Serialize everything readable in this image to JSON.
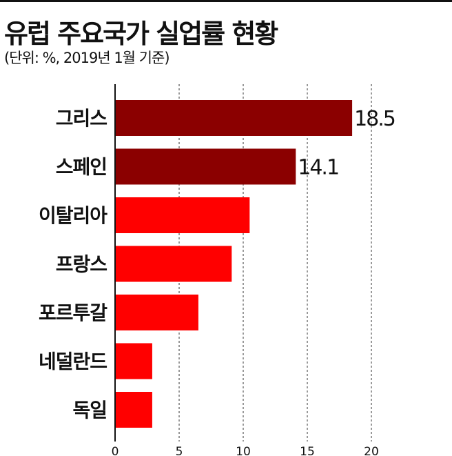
{
  "header": {
    "title": "유럽 주요국가 실업률 현황",
    "subtitle": "(단위: %, 2019년 1월 기준)"
  },
  "colors": {
    "highlight": "#8b0000",
    "bar": "#ff0000",
    "axis": "#111111",
    "grid": "#333333"
  },
  "chart_data": {
    "type": "bar",
    "orientation": "horizontal",
    "title": "유럽 주요국가 실업률 현황",
    "subtitle": "(단위: %, 2019년 1월 기준)",
    "categories": [
      "그리스",
      "스페인",
      "이탈리아",
      "프랑스",
      "포르투갈",
      "네덜란드",
      "독일"
    ],
    "values": [
      18.5,
      14.1,
      10.5,
      9.1,
      6.5,
      2.9,
      2.9
    ],
    "value_labels": [
      "18.5",
      "14.1",
      null,
      null,
      null,
      null,
      null
    ],
    "highlighted": [
      true,
      true,
      false,
      false,
      false,
      false,
      false
    ],
    "xticks": [
      "0",
      "5",
      "10",
      "15",
      "20"
    ],
    "xlim": [
      0,
      20
    ],
    "grid": "vertical dashed",
    "legend": "none"
  }
}
